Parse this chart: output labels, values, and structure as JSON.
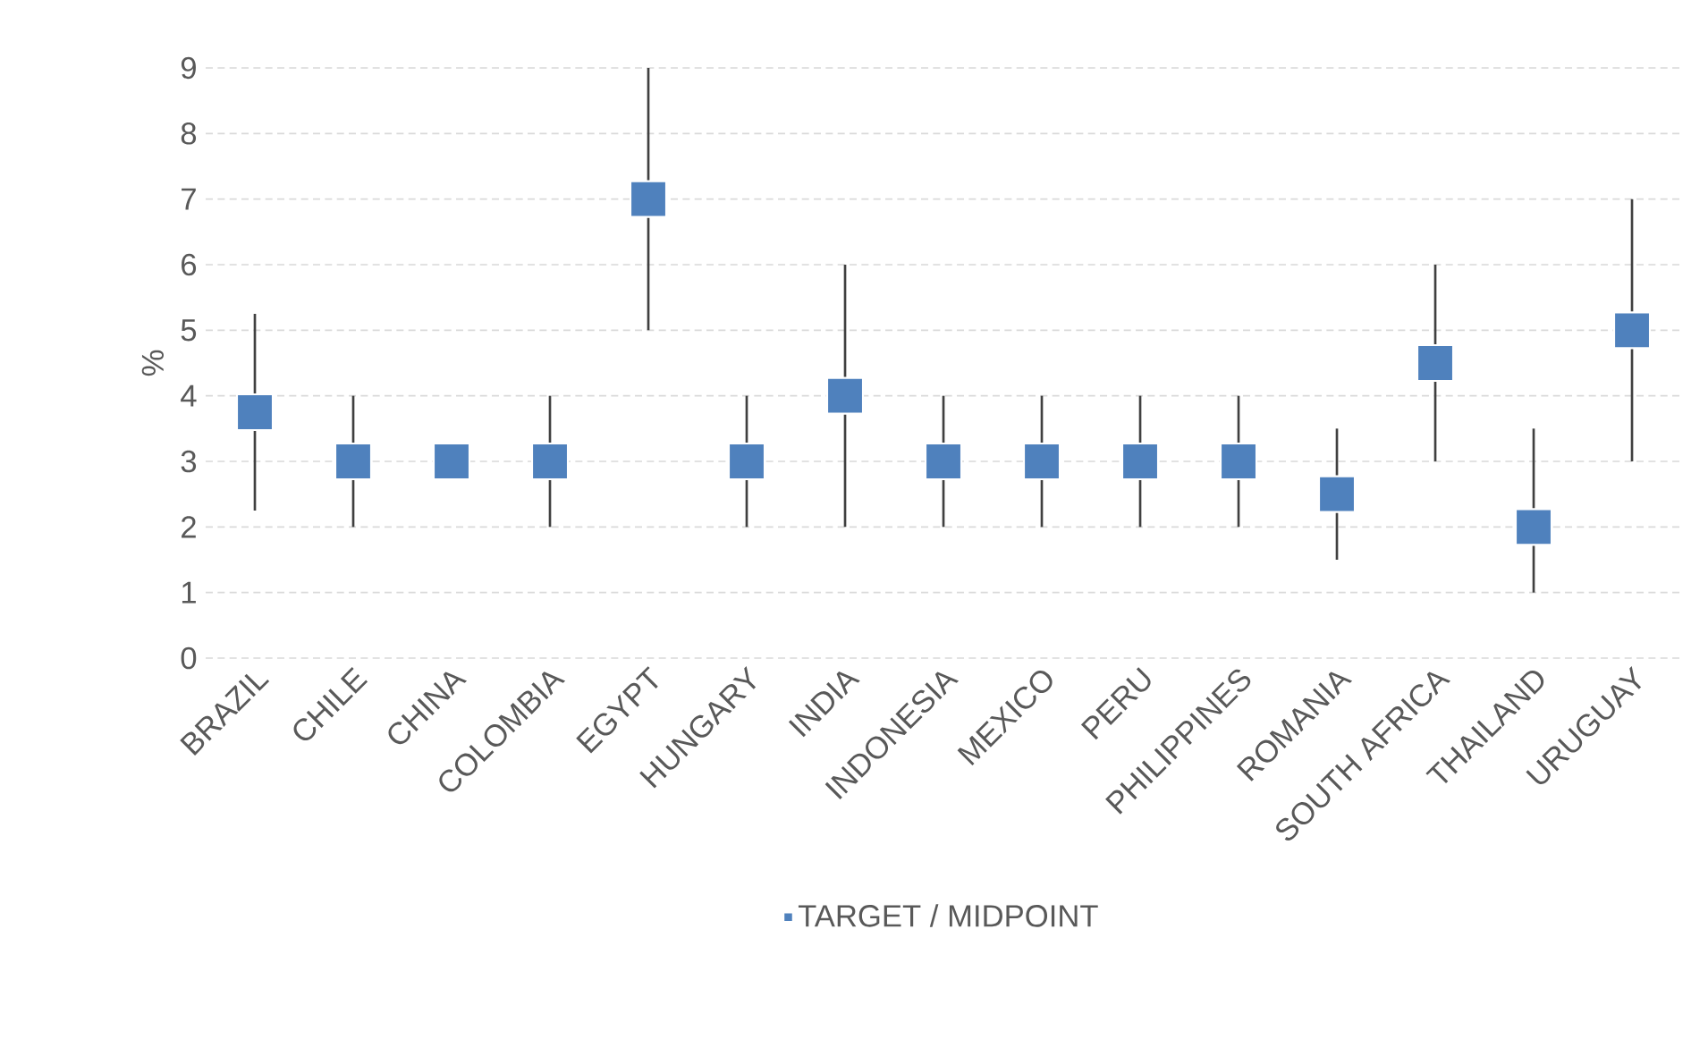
{
  "chart_data": {
    "type": "scatter",
    "ylabel": "%",
    "categories": [
      "BRAZIL",
      "CHILE",
      "CHINA",
      "COLOMBIA",
      "EGYPT",
      "HUNGARY",
      "INDIA",
      "INDONESIA",
      "MEXICO",
      "PERU",
      "PHILIPPINES",
      "ROMANIA",
      "SOUTH AFRICA",
      "THAILAND",
      "URUGUAY"
    ],
    "series": [
      {
        "name": "TARGET / MIDPOINT",
        "color": "#4f81bd",
        "values": [
          3.75,
          3,
          3,
          3,
          7,
          3,
          4,
          3,
          3,
          3,
          3,
          2.5,
          4.5,
          2,
          5
        ],
        "errors": [
          [
            2.25,
            5.25
          ],
          [
            2,
            4
          ],
          null,
          [
            2,
            4
          ],
          [
            5,
            9
          ],
          [
            2,
            4
          ],
          [
            2,
            6
          ],
          [
            2,
            4
          ],
          [
            2,
            4
          ],
          [
            2,
            4
          ],
          [
            2,
            4
          ],
          [
            1.5,
            3.5
          ],
          [
            3,
            6
          ],
          [
            1,
            3.5
          ],
          [
            3,
            7
          ]
        ]
      }
    ],
    "ylim": [
      0,
      9
    ],
    "yticks": [
      0,
      1,
      2,
      3,
      4,
      5,
      6,
      7,
      8,
      9
    ],
    "grid": "y",
    "legend": "bottom",
    "marker": "square"
  }
}
